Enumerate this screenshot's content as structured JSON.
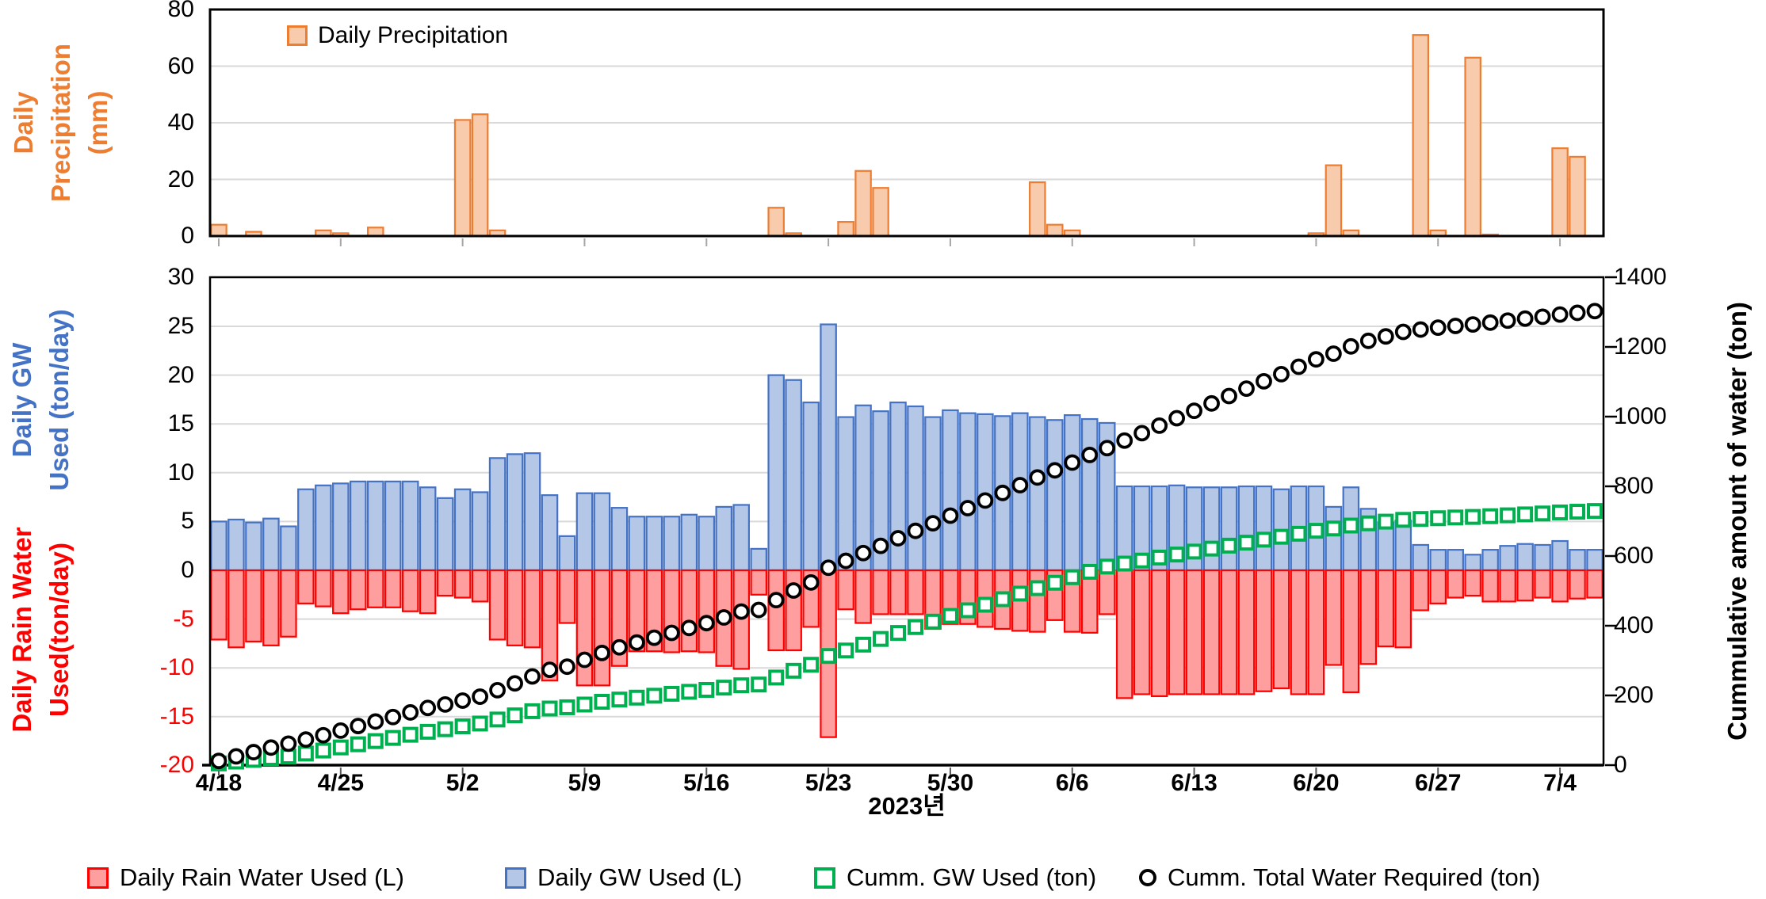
{
  "page": {
    "background": "#FFFFFF"
  },
  "x_axis": {
    "title": "2023년",
    "tick_labels": [
      "4/18",
      "4/25",
      "5/2",
      "5/9",
      "5/16",
      "5/23",
      "5/30",
      "6/6",
      "6/13",
      "6/20",
      "6/27",
      "7/4"
    ],
    "tick_interval_days": 7,
    "dates": [
      "4/18",
      "4/19",
      "4/20",
      "4/21",
      "4/22",
      "4/23",
      "4/24",
      "4/25",
      "4/26",
      "4/27",
      "4/28",
      "4/29",
      "4/30",
      "5/1",
      "5/2",
      "5/3",
      "5/4",
      "5/5",
      "5/6",
      "5/7",
      "5/8",
      "5/9",
      "5/10",
      "5/11",
      "5/12",
      "5/13",
      "5/14",
      "5/15",
      "5/16",
      "5/17",
      "5/18",
      "5/19",
      "5/20",
      "5/21",
      "5/22",
      "5/23",
      "5/24",
      "5/25",
      "5/26",
      "5/27",
      "5/28",
      "5/29",
      "5/30",
      "5/31",
      "6/1",
      "6/2",
      "6/3",
      "6/4",
      "6/5",
      "6/6",
      "6/7",
      "6/8",
      "6/9",
      "6/10",
      "6/11",
      "6/12",
      "6/13",
      "6/14",
      "6/15",
      "6/16",
      "6/17",
      "6/18",
      "6/19",
      "6/20",
      "6/21",
      "6/22",
      "6/23",
      "6/24",
      "6/25",
      "6/26",
      "6/27",
      "6/28",
      "6/29",
      "6/30",
      "7/1",
      "7/2",
      "7/3",
      "7/4",
      "7/5",
      "7/6"
    ]
  },
  "colors": {
    "grid": "#D9D9D9",
    "border": "#000000",
    "week_tick_top": "#A6A6A6",
    "week_tick_bottom": "#595959",
    "precip_fill": "#F8CBAD",
    "precip_stroke": "#ED7D31",
    "gw_fill": "#B4C7E7",
    "gw_stroke": "#4472C4",
    "rain_fill": "#FF9E9E",
    "rain_stroke": "#FF0000",
    "cum_gw": "#00B050",
    "cum_total": "#000000",
    "negative_tick": "#FF0000"
  },
  "chart_data": [
    {
      "id": "precip_panel",
      "type": "bar",
      "legend_label": "Daily Precipitation",
      "ylabel_lines": [
        "Daily",
        "Precipitation",
        "(mm)"
      ],
      "ylabel_color": "#ED7D31",
      "yticks": [
        0,
        20,
        40,
        60,
        80
      ],
      "ylim": [
        0,
        80
      ],
      "grid": true,
      "unit": "mm",
      "values": [
        4,
        0,
        1.5,
        0,
        0,
        0,
        2,
        1,
        0,
        3,
        0,
        0,
        0,
        0,
        41,
        43,
        2,
        0,
        0,
        0,
        0,
        0,
        0,
        0,
        0,
        0,
        0,
        0,
        0,
        0,
        0,
        0,
        10,
        1,
        0,
        0,
        5,
        23,
        17,
        0,
        0,
        0,
        0,
        0,
        0,
        0,
        0,
        19,
        4,
        2,
        0,
        0,
        0,
        0,
        0,
        0,
        0,
        0,
        0,
        0,
        0,
        0,
        0,
        1,
        25,
        2,
        0,
        0,
        0,
        71,
        2,
        0,
        63,
        0.5,
        0,
        0,
        0,
        31,
        28,
        0
      ]
    },
    {
      "id": "daily_water_panel",
      "type": "bar+scatter",
      "left_axis": {
        "ticks": [
          30,
          25,
          20,
          15,
          10,
          5,
          0,
          -5,
          -10,
          -15,
          -20
        ],
        "lim": [
          -20,
          30
        ],
        "negative_tick_color": "#FF0000"
      },
      "right_axis": {
        "title": "Cummulative amount of water (ton)",
        "ticks": [
          0,
          200,
          400,
          600,
          800,
          1000,
          1200,
          1400
        ],
        "lim": [
          0,
          1400
        ]
      },
      "ylabel_gw_lines": [
        "Daily GW",
        "Used (ton/day)"
      ],
      "ylabel_gw_color": "#4472C4",
      "ylabel_rain_lines": [
        "Daily Rain Water",
        "Used(ton/day)"
      ],
      "ylabel_rain_color": "#FF0000",
      "grid": true,
      "series": [
        {
          "name": "Daily Rain Water Used (L)",
          "type": "bar",
          "axis": "left",
          "unit": "ton/day",
          "values": [
            -7.1,
            -7.9,
            -7.3,
            -7.7,
            -6.8,
            -3.4,
            -3.7,
            -4.4,
            -4.0,
            -3.8,
            -3.8,
            -4.2,
            -4.4,
            -2.6,
            -2.8,
            -3.2,
            -7.1,
            -7.7,
            -7.9,
            -11.3,
            -5.4,
            -11.8,
            -11.8,
            -9.8,
            -8.3,
            -8.3,
            -8.4,
            -8.3,
            -8.4,
            -9.8,
            -10.1,
            -2.5,
            -8.2,
            -8.2,
            -5.8,
            -17.1,
            -4.0,
            -5.4,
            -4.5,
            -4.5,
            -4.5,
            -6.0,
            -5.5,
            -5.5,
            -5.8,
            -6.0,
            -6.2,
            -6.3,
            -5.1,
            -6.3,
            -6.4,
            -4.5,
            -13.1,
            -12.7,
            -12.9,
            -12.7,
            -12.7,
            -12.7,
            -12.7,
            -12.7,
            -12.4,
            -12.1,
            -12.7,
            -12.7,
            -9.7,
            -12.5,
            -9.6,
            -7.8,
            -7.9,
            -4.1,
            -3.4,
            -2.8,
            -2.6,
            -3.2,
            -3.2,
            -3.1,
            -2.8,
            -3.2,
            -2.9,
            -2.8
          ]
        },
        {
          "name": "Daily GW Used (L)",
          "type": "bar",
          "axis": "left",
          "unit": "ton/day",
          "values": [
            5.0,
            5.2,
            4.9,
            5.3,
            4.5,
            8.3,
            8.7,
            8.9,
            9.1,
            9.1,
            9.1,
            9.1,
            8.5,
            7.4,
            8.3,
            8.0,
            11.5,
            11.9,
            12.0,
            7.7,
            3.5,
            7.9,
            7.9,
            6.4,
            5.5,
            5.5,
            5.5,
            5.7,
            5.5,
            6.5,
            6.7,
            2.2,
            20.0,
            19.5,
            17.2,
            25.2,
            15.7,
            16.9,
            16.3,
            17.2,
            16.8,
            15.7,
            16.4,
            16.1,
            16.0,
            15.8,
            16.1,
            15.7,
            15.4,
            15.9,
            15.5,
            15.1,
            8.6,
            8.6,
            8.6,
            8.7,
            8.5,
            8.5,
            8.5,
            8.6,
            8.6,
            8.3,
            8.6,
            8.6,
            6.5,
            8.5,
            6.3,
            4.9,
            5.1,
            2.6,
            2.1,
            2.1,
            1.6,
            2.1,
            2.5,
            2.7,
            2.6,
            3.0,
            2.1,
            2.1
          ]
        },
        {
          "name": "Cumm. GW Used (ton)",
          "type": "scatter",
          "marker": "open-square",
          "axis": "right",
          "unit": "ton",
          "values": [
            5.0,
            10.2,
            15.1,
            20.4,
            24.9,
            33.2,
            41.9,
            50.8,
            59.9,
            69.0,
            78.1,
            87.2,
            95.7,
            103.1,
            111.4,
            119.4,
            130.9,
            142.8,
            154.8,
            162.5,
            166.0,
            173.9,
            181.8,
            188.2,
            193.7,
            199.2,
            204.7,
            210.4,
            215.9,
            222.4,
            229.1,
            231.3,
            251.3,
            270.8,
            288.0,
            313.2,
            328.9,
            345.8,
            362.1,
            379.3,
            396.1,
            411.8,
            428.2,
            444.3,
            460.3,
            476.1,
            492.2,
            507.9,
            523.3,
            539.2,
            554.7,
            569.8,
            578.4,
            587.0,
            595.6,
            604.3,
            612.8,
            621.3,
            629.8,
            638.4,
            647.0,
            655.3,
            663.9,
            672.5,
            679.0,
            687.5,
            693.8,
            698.7,
            703.8,
            706.4,
            708.5,
            710.6,
            712.2,
            714.3,
            716.8,
            719.5,
            722.1,
            725.1,
            727.2,
            729.3
          ]
        },
        {
          "name": "Cumm. Total Water Required (ton)",
          "type": "scatter",
          "marker": "open-circle",
          "axis": "right",
          "unit": "ton",
          "values": [
            12.1,
            25.2,
            37.4,
            50.4,
            61.7,
            73.4,
            85.8,
            99.1,
            112.2,
            125.1,
            138.0,
            151.3,
            164.2,
            174.2,
            185.3,
            196.5,
            215.1,
            234.7,
            254.6,
            273.6,
            282.5,
            302.2,
            321.9,
            338.1,
            351.9,
            365.7,
            379.6,
            393.6,
            407.5,
            423.8,
            440.6,
            445.3,
            473.5,
            501.2,
            524.2,
            566.5,
            586.2,
            608.5,
            629.3,
            651.0,
            672.3,
            694.0,
            715.9,
            737.5,
            759.3,
            781.1,
            803.4,
            825.4,
            845.9,
            868.1,
            890.0,
            909.6,
            931.3,
            952.6,
            974.1,
            995.5,
            1016.7,
            1037.9,
            1059.1,
            1080.4,
            1101.4,
            1121.8,
            1143.1,
            1164.4,
            1180.6,
            1201.6,
            1217.5,
            1230.2,
            1243.2,
            1249.9,
            1255.4,
            1260.3,
            1264.5,
            1269.8,
            1275.5,
            1281.3,
            1286.7,
            1292.9,
            1297.9,
            1302.8
          ]
        }
      ]
    }
  ],
  "legend": {
    "items": [
      {
        "label": "Daily Rain Water Used (L)",
        "marker": "filled-square",
        "fill": "#FF9E9E",
        "stroke": "#FF0000"
      },
      {
        "label": "Daily GW Used (L)",
        "marker": "filled-square",
        "fill": "#B4C7E7",
        "stroke": "#4472C4"
      },
      {
        "label": "Cumm. GW Used (ton)",
        "marker": "open-square",
        "stroke": "#00B050"
      },
      {
        "label": "Cumm. Total Water Required (ton)",
        "marker": "open-circle",
        "stroke": "#000000"
      }
    ]
  }
}
